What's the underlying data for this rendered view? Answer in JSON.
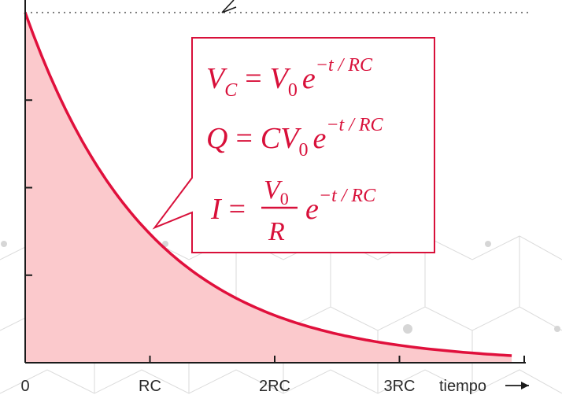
{
  "chart_data": {
    "type": "area",
    "function": "exponential-decay",
    "x_ticks": [
      {
        "value": 0,
        "label": "0"
      },
      {
        "value": 1,
        "label": "RC"
      },
      {
        "value": 2,
        "label": "2RC"
      },
      {
        "value": 3,
        "label": "3RC"
      }
    ],
    "xlabel": "tiempo",
    "xlim": [
      0,
      4
    ],
    "ylim": [
      0,
      1
    ],
    "y_tick_values": [
      0.25,
      0.5,
      0.75
    ],
    "series": [
      {
        "x": [
          0,
          0.25,
          0.5,
          0.75,
          1,
          1.5,
          2,
          2.5,
          3,
          3.5,
          3.9
        ],
        "y": [
          1,
          0.78,
          0.61,
          0.47,
          0.37,
          0.22,
          0.14,
          0.08,
          0.05,
          0.03,
          0.02
        ],
        "color": "#e0103c",
        "fill": "#fbc9cc"
      }
    ],
    "reference_line": {
      "y": 1,
      "style": "dotted"
    },
    "annotation": {
      "pointer_x": 1,
      "border_color": "#d8103a",
      "equations": [
        {
          "lhs": "V",
          "lhs_sub": "C",
          "equals": "=",
          "rhs": "V",
          "rhs_sub": "0",
          "exp_base": "e",
          "exponent": "−t / RC"
        },
        {
          "lhs": "Q",
          "equals": "=",
          "rhs": "CV",
          "rhs_sub": "0",
          "exp_base": "e",
          "exponent": "−t / RC"
        },
        {
          "lhs": "I",
          "equals": "=",
          "num": "V",
          "num_sub": "0",
          "den": "R",
          "exp_base": "e",
          "exponent": "−t / RC"
        }
      ]
    },
    "grid": false,
    "colors": {
      "axis": "#1a1a1a",
      "curve": "#e0103c",
      "fill": "#fbc9cc",
      "annotation": "#d8103a",
      "background_pattern": "#c8c8c8"
    }
  }
}
